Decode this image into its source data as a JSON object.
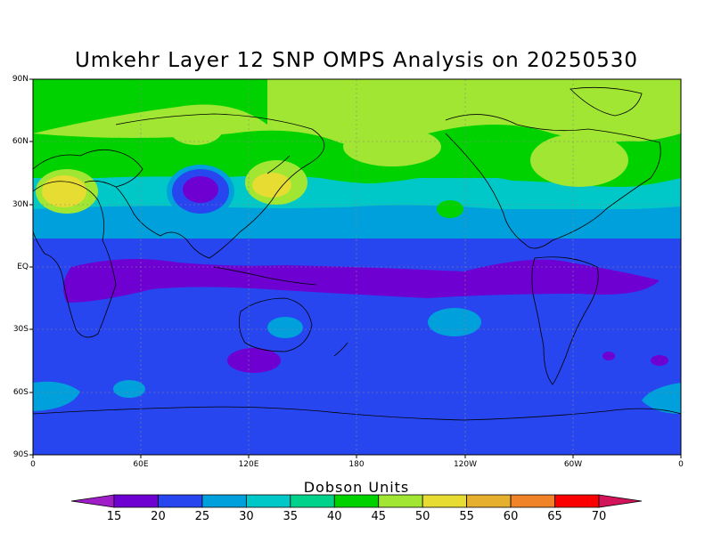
{
  "title": "Umkehr Layer 12 SNP OMPS Analysis on 20250530",
  "lat_labels": [
    "90N",
    "60N",
    "30N",
    "EQ",
    "30S",
    "60S",
    "90S"
  ],
  "lon_labels": [
    "0",
    "60E",
    "120E",
    "180",
    "120W",
    "60W",
    "0"
  ],
  "colorbar": {
    "title": "Dobson Units",
    "levels": [
      "15",
      "20",
      "25",
      "30",
      "35",
      "40",
      "45",
      "50",
      "55",
      "60",
      "65",
      "70"
    ],
    "colors": [
      "#a01ec8",
      "#6e00d2",
      "#2846f0",
      "#00a0dc",
      "#00c8c8",
      "#00d28c",
      "#00d200",
      "#a0e632",
      "#e6dc32",
      "#e6af2d",
      "#f08228",
      "#fa0000",
      "#d2145a"
    ]
  },
  "map_colors": {
    "band_15_20": "#6e00d2",
    "band_20_25": "#2846f0",
    "band_25_30": "#00a0dc",
    "band_30_35": "#00c8c8",
    "band_40_45": "#00d200",
    "band_45_50": "#a0e632",
    "band_50_55": "#e6dc32",
    "coastline": "#000000"
  }
}
